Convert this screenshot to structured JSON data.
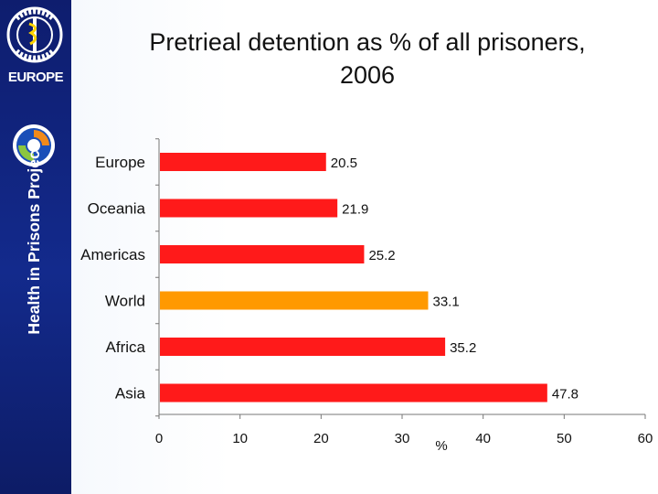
{
  "sidebar": {
    "logo_text": "EUROPE",
    "vertical_title": "Health in Prisons Project"
  },
  "title_line1": "Pretrieal detention as % of all prisoners,",
  "title_line2": "2006",
  "chart_data": {
    "type": "bar",
    "orientation": "horizontal",
    "title": "Pretrieal detention as % of all prisoners, 2006",
    "xlabel": "%",
    "ylabel": "",
    "xlim": [
      0,
      60
    ],
    "x_ticks": [
      0,
      10,
      20,
      30,
      40,
      50,
      60
    ],
    "categories": [
      "Europe",
      "Oceania",
      "Americas",
      "World",
      "Africa",
      "Asia"
    ],
    "values": [
      20.5,
      21.9,
      25.2,
      33.1,
      35.2,
      47.8
    ],
    "value_labels": [
      "20.5",
      "21.9",
      "25.2",
      "33.1",
      "35.2",
      "47.8"
    ],
    "bar_colors": [
      "#ff1a1a",
      "#ff1a1a",
      "#ff1a1a",
      "#ff9900",
      "#ff1a1a",
      "#ff1a1a"
    ],
    "grid": false,
    "legend": "none"
  },
  "colors": {
    "sidebar": "#132a8c",
    "bar": "#ff1a1a",
    "highlight_bar": "#ff9900",
    "axis": "#666666"
  }
}
